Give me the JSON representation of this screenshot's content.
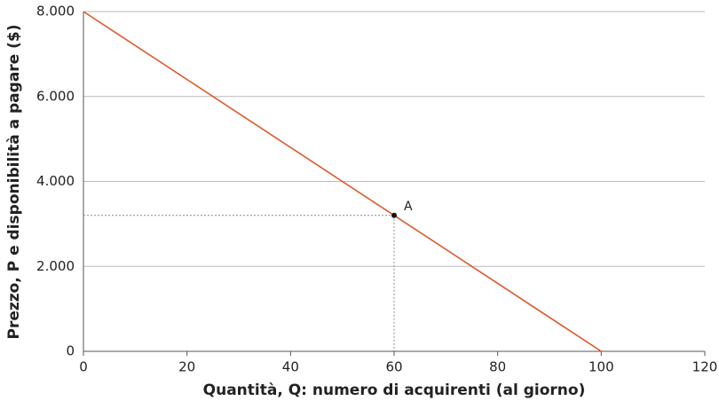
{
  "chart_data": {
    "type": "line",
    "x": [
      0,
      100
    ],
    "series": [
      {
        "name": null,
        "color": "#e0562c",
        "values": [
          8000,
          0
        ]
      }
    ],
    "points": [
      {
        "label": "A",
        "x": 60,
        "y": 3200
      }
    ],
    "xlabel": "Quantità, Q: numero di acquirenti (al giorno)",
    "ylabel": "Prezzo, P e disponibilità a pagare ($)",
    "xlim": [
      0,
      120
    ],
    "xticks": [
      0,
      20,
      40,
      60,
      80,
      100,
      120
    ],
    "ylim": [
      0,
      8000
    ],
    "yticks": [
      0,
      {
        "value": 2000,
        "label": "2.000"
      },
      {
        "value": 4000,
        "label": "4.000"
      },
      {
        "value": 6000,
        "label": "6.000"
      },
      {
        "value": 8000,
        "label": "8.000"
      }
    ],
    "grid": true
  }
}
